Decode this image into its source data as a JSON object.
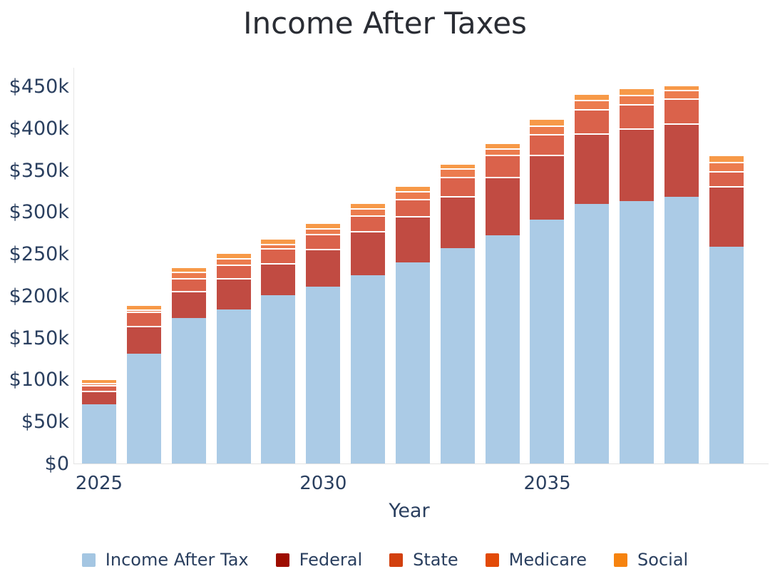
{
  "title": "Income After Taxes",
  "x_axis": {
    "label": "Year",
    "tick_labels": [
      "2025",
      "2030",
      "2035"
    ],
    "tick_slots": [
      0,
      5,
      10
    ]
  },
  "y_axis": {
    "tick_labels": [
      "$0",
      "$50k",
      "$100k",
      "$150k",
      "$200k",
      "$250k",
      "$300k",
      "$350k",
      "$400k",
      "$450k"
    ],
    "max_k": 450
  },
  "legend": [
    {
      "label": "Income After Tax",
      "color": "#a4c6e2"
    },
    {
      "label": "Federal",
      "color": "#9d0c00"
    },
    {
      "label": "State",
      "color": "#d2400e"
    },
    {
      "label": "Medicare",
      "color": "#e24a08"
    },
    {
      "label": "Social",
      "color": "#f6830f"
    }
  ],
  "chart_data": {
    "type": "bar",
    "stacked": true,
    "title": "Income After Taxes",
    "xlabel": "Year",
    "ylabel": "",
    "ylim_k": [
      0,
      450
    ],
    "grid": false,
    "legend_position": "bottom",
    "categories": [
      2025,
      2026,
      2027,
      2028,
      2029,
      2030,
      2031,
      2032,
      2033,
      2034,
      2035,
      2036,
      2037,
      2038,
      2039
    ],
    "units": "thousands of dollars",
    "series": [
      {
        "name": "Income After Tax",
        "bar_color": "#abcbe6",
        "legend_color": "#a4c6e2",
        "values": [
          71,
          131,
          174,
          184,
          201,
          211,
          225,
          240,
          257,
          272,
          291,
          310,
          313,
          318,
          259
        ]
      },
      {
        "name": "Federal",
        "bar_color": "#c14b42",
        "legend_color": "#9d0c00",
        "values": [
          16,
          33,
          32,
          37,
          38,
          45,
          52,
          55,
          62,
          70,
          77,
          84,
          87,
          88,
          72
        ]
      },
      {
        "name": "State",
        "bar_color": "#da624b",
        "legend_color": "#d2400e",
        "values": [
          7,
          17,
          15,
          16,
          18,
          18,
          19,
          21,
          23,
          26,
          25,
          29,
          29,
          30,
          18
        ]
      },
      {
        "name": "Medicare",
        "bar_color": "#ec7c4e",
        "legend_color": "#e24a08",
        "values": [
          2,
          3,
          8,
          8,
          5,
          7,
          9,
          9,
          10,
          8,
          10,
          11,
          11,
          10,
          11
        ]
      },
      {
        "name": "Social",
        "bar_color": "#f79948",
        "legend_color": "#f6830f",
        "values": [
          5,
          6,
          6,
          7,
          7,
          7,
          6,
          7,
          6,
          7,
          9,
          8,
          8,
          6,
          8
        ]
      }
    ],
    "totals_k": [
      101,
      190,
      235,
      252,
      269,
      288,
      311,
      332,
      358,
      383,
      412,
      442,
      448,
      452,
      368
    ]
  }
}
